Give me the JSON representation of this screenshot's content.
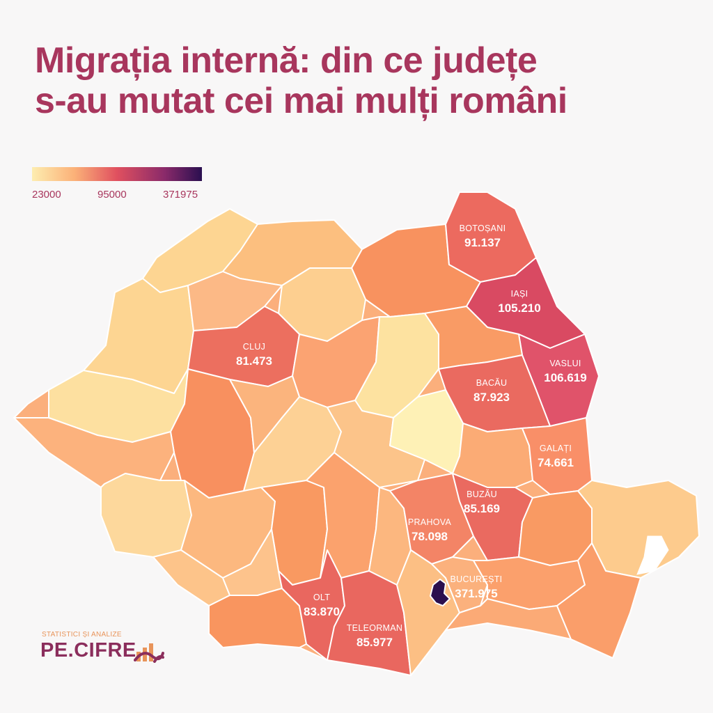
{
  "title": {
    "line1": "Migrația internă: din ce județe",
    "line2": "s-au mutat cei mai mulți români"
  },
  "legend": {
    "min": "23000",
    "mid": "95000",
    "max": "371975",
    "colors": [
      "#fdedb0",
      "#fbb178",
      "#e0505f",
      "#8a2a6a",
      "#2a0f50"
    ]
  },
  "labels": {
    "botosani": {
      "name": "BOTOȘANI",
      "value": "91.137"
    },
    "iasi": {
      "name": "IAȘI",
      "value": "105.210"
    },
    "cluj": {
      "name": "CLUJ",
      "value": "81.473"
    },
    "vaslui": {
      "name": "VASLUI",
      "value": "106.619"
    },
    "bacau": {
      "name": "BACĂU",
      "value": "87.923"
    },
    "galati": {
      "name": "GALAȚI",
      "value": "74.661"
    },
    "buzau": {
      "name": "BUZĂU",
      "value": "85.169"
    },
    "prahova": {
      "name": "PRAHOVA",
      "value": "78.098"
    },
    "bucuresti": {
      "name": "BUCUREȘTI",
      "value": "371.975"
    },
    "olt": {
      "name": "OLT",
      "value": "83.870"
    },
    "teleorman": {
      "name": "TELEORMAN",
      "value": "85.977"
    }
  },
  "logo": {
    "tagline": "STATISTICI ȘI ANALIZE",
    "wordmark": "PE.CIFRE",
    "accent": "#e8945a",
    "primary": "#8b2e5c"
  }
}
